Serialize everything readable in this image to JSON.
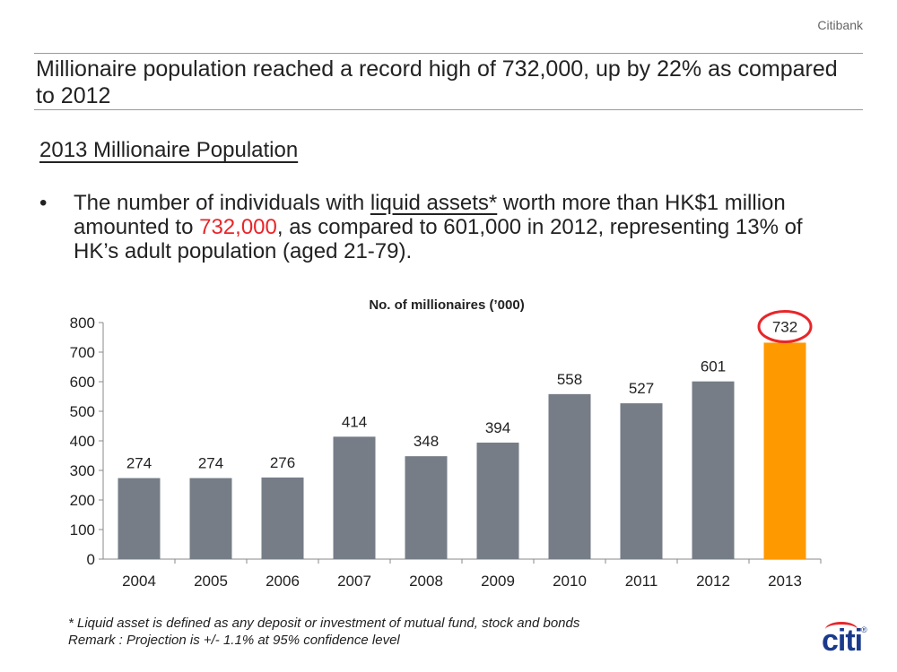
{
  "brand": "Citibank",
  "headline": "Millionaire population reached a record high of 732,000, up by 22% as compared to 2012",
  "section_title": "2013 Millionaire Population",
  "bullet": {
    "symbol": "•",
    "part1": "The number of individuals with ",
    "underlined": "liquid assets*",
    "part2": " worth more than HK$1 million amounted to ",
    "highlight": "732,000",
    "part3": ", as compared to 601,000 in 2012, representing 13% of HK’s adult population (aged 21-79)."
  },
  "chart_data": {
    "type": "bar",
    "title": "No. of millionaires (’000)",
    "categories": [
      "2004",
      "2005",
      "2006",
      "2007",
      "2008",
      "2009",
      "2010",
      "2011",
      "2012",
      "2013"
    ],
    "values": [
      274,
      274,
      276,
      414,
      348,
      394,
      558,
      527,
      601,
      732
    ],
    "data_labels": [
      "274",
      "274",
      "276",
      "414",
      "348",
      "394",
      "558",
      "527",
      "601",
      "732"
    ],
    "yticks": [
      "0",
      "100",
      "200",
      "300",
      "400",
      "500",
      "600",
      "700",
      "800"
    ],
    "ylim": [
      0,
      800
    ],
    "grid": false,
    "colors": {
      "default": "#767d87",
      "highlight": "#ff9900",
      "circle": "#e8262a"
    },
    "highlight_index": 9
  },
  "footnote": {
    "line1": "* Liquid asset is defined as any deposit or investment of mutual fund, stock and bonds",
    "line2": "Remark : Projection is  +/- 1.1% at 95% confidence level"
  },
  "logo": {
    "text": "citi",
    "mark": "®"
  }
}
